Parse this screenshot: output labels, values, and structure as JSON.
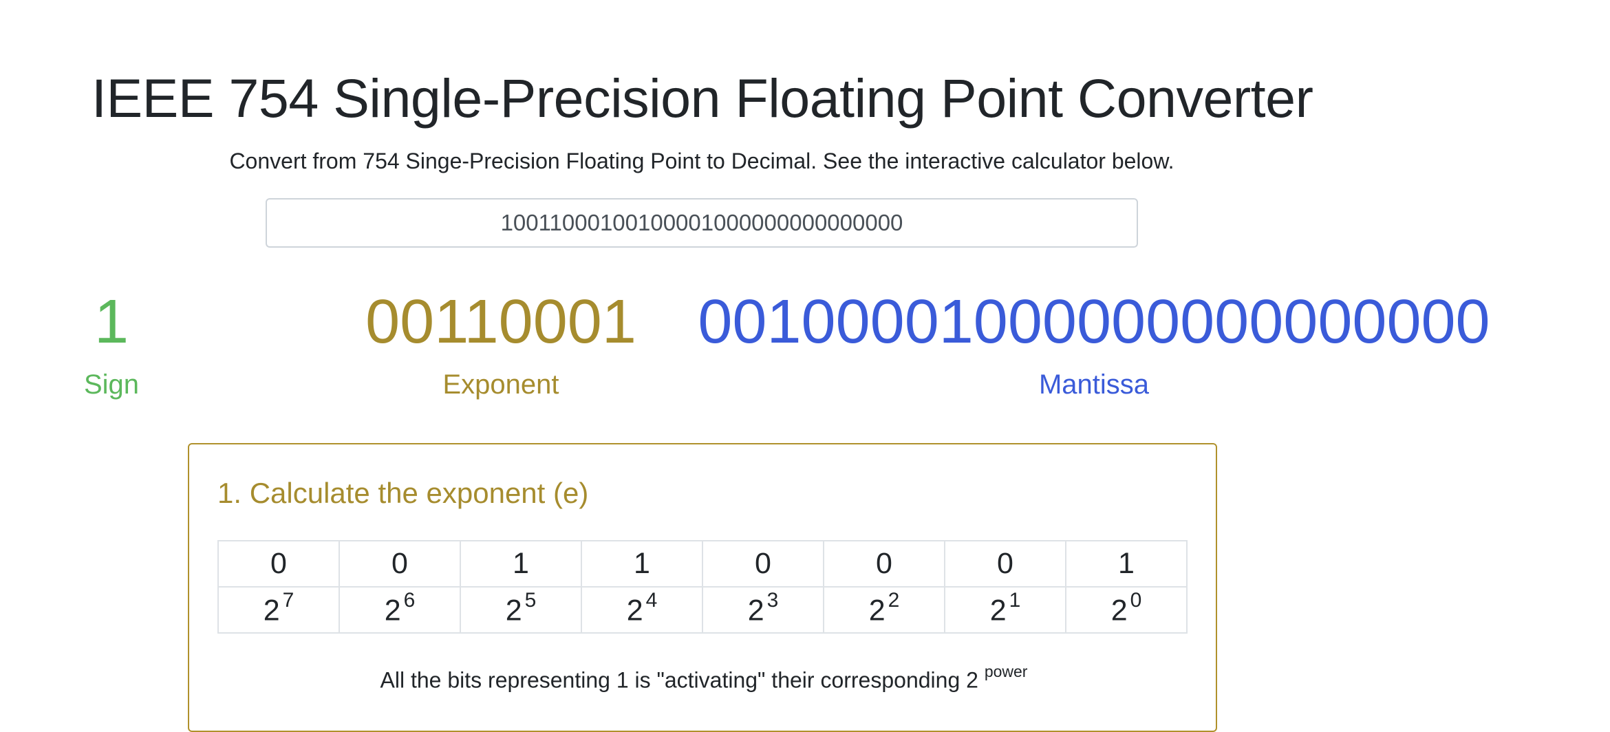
{
  "header": {
    "title": "IEEE 754 Single-Precision Floating Point Converter",
    "subtitle": "Convert from 754 Singe-Precision Floating Point to Decimal. See the interactive calculator below."
  },
  "input": {
    "value": "10011000100100001000000000000000"
  },
  "parts": {
    "sign": {
      "value": "1",
      "label": "Sign",
      "color": "#5cb85c"
    },
    "exponent": {
      "value": "00110001",
      "label": "Exponent",
      "color": "#a68c2e"
    },
    "mantissa": {
      "value": "00100001000000000000000",
      "label": "Mantissa",
      "color": "#3a5bd9"
    }
  },
  "step1": {
    "title": "1. Calculate the exponent (e)",
    "bits": [
      "0",
      "0",
      "1",
      "1",
      "0",
      "0",
      "0",
      "1"
    ],
    "powers": [
      {
        "base": "2",
        "exp": "7"
      },
      {
        "base": "2",
        "exp": "6"
      },
      {
        "base": "2",
        "exp": "5"
      },
      {
        "base": "2",
        "exp": "4"
      },
      {
        "base": "2",
        "exp": "3"
      },
      {
        "base": "2",
        "exp": "2"
      },
      {
        "base": "2",
        "exp": "1"
      },
      {
        "base": "2",
        "exp": "0"
      }
    ],
    "explanation_text": "All the bits representing 1 is \"activating\" their corresponding 2",
    "explanation_sup": "power"
  }
}
